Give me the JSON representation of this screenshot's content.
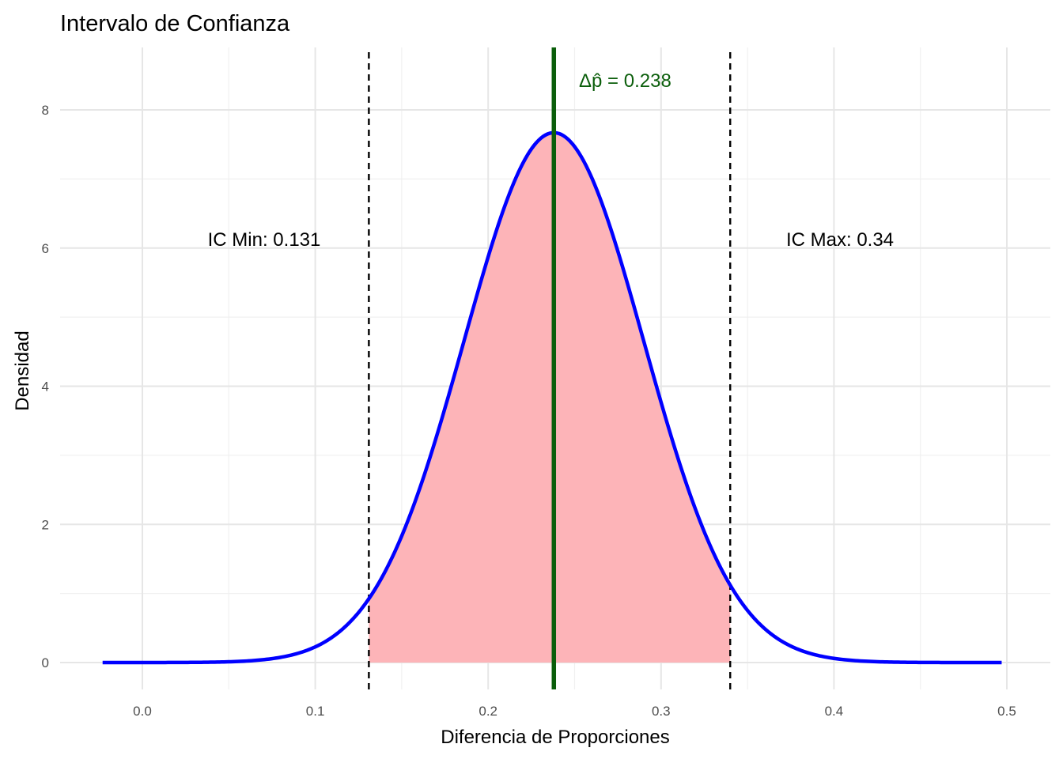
{
  "chart_data": {
    "type": "area",
    "title": "Intervalo de Confianza",
    "xlabel": "Diferencia de Proporciones",
    "ylabel": "Densidad",
    "xlim": [
      -0.023,
      0.497
    ],
    "ylim": [
      0,
      8
    ],
    "x_ticks": [
      "0.0",
      "0.1",
      "0.2",
      "0.3",
      "0.4",
      "0.5"
    ],
    "y_ticks": [
      "0",
      "2",
      "4",
      "6",
      "8"
    ],
    "grid": true,
    "distribution": {
      "mean": 0.238,
      "sd": 0.052,
      "peak_density": 7.67
    },
    "ci": {
      "min": 0.131,
      "max": 0.34
    },
    "annotations": {
      "estimate": "Δp̂ = 0.238",
      "ci_min": "IC Min: 0.131",
      "ci_max": "IC Max: 0.34"
    },
    "colors": {
      "curve": "#0000ff",
      "fill": "#fdb4b8",
      "estimate_line": "#0b5e0b",
      "ci_lines": "#000000",
      "estimate_text": "#0b5e0b"
    }
  }
}
